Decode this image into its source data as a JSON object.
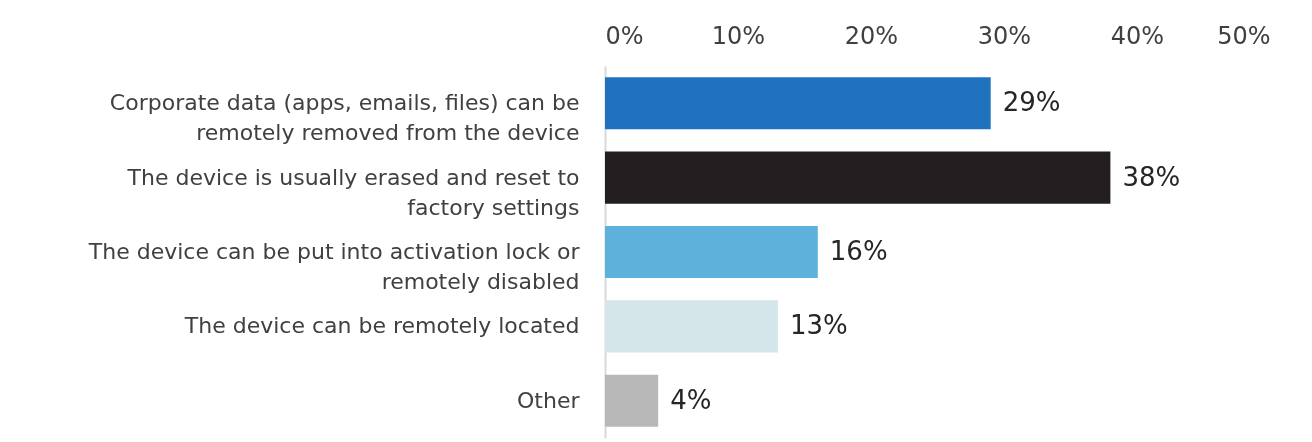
{
  "chart_data": {
    "type": "bar",
    "orientation": "horizontal",
    "categories": [
      "Corporate data (apps, emails, files) can be remotely removed from the device",
      "The device is usually erased and reset to factory settings",
      "The device can be put into activation lock or remotely disabled",
      "The device can be remotely located",
      "Other"
    ],
    "values": [
      29,
      38,
      16,
      13,
      4
    ],
    "colors": [
      "#1f72be",
      "#231f20",
      "#5eb1db",
      "#d4e6ea",
      "#b8b8b8"
    ],
    "value_labels": [
      "29%",
      "38%",
      "16%",
      "13%",
      "4%"
    ],
    "xlim": [
      0,
      50
    ],
    "xticks": [
      {
        "value": 0,
        "label": "0%"
      },
      {
        "value": 10,
        "label": "10%"
      },
      {
        "value": 20,
        "label": "20%"
      },
      {
        "value": 30,
        "label": "30%"
      },
      {
        "value": 40,
        "label": "40%"
      },
      {
        "value": 50,
        "label": "50%"
      }
    ],
    "grid": false
  }
}
